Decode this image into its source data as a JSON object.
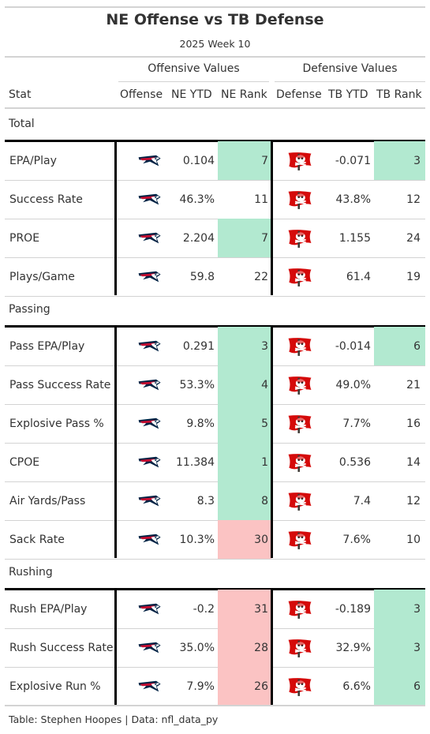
{
  "header": {
    "title": "NE Offense vs TB Defense",
    "subtitle": "2025 Week 10"
  },
  "spanners": {
    "offense": "Offensive Values",
    "defense": "Defensive Values"
  },
  "columns": {
    "stat": "Stat",
    "offense": "Offense",
    "ne_ytd": "NE YTD",
    "ne_rank": "NE Rank",
    "defense": "Defense",
    "tb_ytd": "TB YTD",
    "tb_rank": "TB Rank"
  },
  "logos": {
    "offense": "patriots-logo-icon",
    "defense": "buccaneers-flag-logo-icon"
  },
  "colors": {
    "good_rank": "#b2e9d0",
    "bad_rank": "#fbc3c3"
  },
  "groups": [
    {
      "label": "Total",
      "rows": [
        {
          "stat": "EPA/Play",
          "ne_ytd": "0.104",
          "ne_rank": "7",
          "ne_rank_status": "good",
          "tb_ytd": "-0.071",
          "tb_rank": "3",
          "tb_rank_status": "good"
        },
        {
          "stat": "Success Rate",
          "ne_ytd": "46.3%",
          "ne_rank": "11",
          "ne_rank_status": "none",
          "tb_ytd": "43.8%",
          "tb_rank": "12",
          "tb_rank_status": "none"
        },
        {
          "stat": "PROE",
          "ne_ytd": "2.204",
          "ne_rank": "7",
          "ne_rank_status": "good",
          "tb_ytd": "1.155",
          "tb_rank": "24",
          "tb_rank_status": "none"
        },
        {
          "stat": "Plays/Game",
          "ne_ytd": "59.8",
          "ne_rank": "22",
          "ne_rank_status": "none",
          "tb_ytd": "61.4",
          "tb_rank": "19",
          "tb_rank_status": "none"
        }
      ]
    },
    {
      "label": "Passing",
      "rows": [
        {
          "stat": "Pass EPA/Play",
          "ne_ytd": "0.291",
          "ne_rank": "3",
          "ne_rank_status": "good",
          "tb_ytd": "-0.014",
          "tb_rank": "6",
          "tb_rank_status": "good"
        },
        {
          "stat": "Pass Success Rate",
          "ne_ytd": "53.3%",
          "ne_rank": "4",
          "ne_rank_status": "good",
          "tb_ytd": "49.0%",
          "tb_rank": "21",
          "tb_rank_status": "none"
        },
        {
          "stat": "Explosive Pass %",
          "ne_ytd": "9.8%",
          "ne_rank": "5",
          "ne_rank_status": "good",
          "tb_ytd": "7.7%",
          "tb_rank": "16",
          "tb_rank_status": "none"
        },
        {
          "stat": "CPOE",
          "ne_ytd": "11.384",
          "ne_rank": "1",
          "ne_rank_status": "good",
          "tb_ytd": "0.536",
          "tb_rank": "14",
          "tb_rank_status": "none"
        },
        {
          "stat": "Air Yards/Pass",
          "ne_ytd": "8.3",
          "ne_rank": "8",
          "ne_rank_status": "good",
          "tb_ytd": "7.4",
          "tb_rank": "12",
          "tb_rank_status": "none"
        },
        {
          "stat": "Sack Rate",
          "ne_ytd": "10.3%",
          "ne_rank": "30",
          "ne_rank_status": "bad",
          "tb_ytd": "7.6%",
          "tb_rank": "10",
          "tb_rank_status": "none"
        }
      ]
    },
    {
      "label": "Rushing",
      "rows": [
        {
          "stat": "Rush EPA/Play",
          "ne_ytd": "-0.2",
          "ne_rank": "31",
          "ne_rank_status": "bad",
          "tb_ytd": "-0.189",
          "tb_rank": "3",
          "tb_rank_status": "good"
        },
        {
          "stat": "Rush Success Rate",
          "ne_ytd": "35.0%",
          "ne_rank": "28",
          "ne_rank_status": "bad",
          "tb_ytd": "32.9%",
          "tb_rank": "3",
          "tb_rank_status": "good"
        },
        {
          "stat": "Explosive Run %",
          "ne_ytd": "7.9%",
          "ne_rank": "26",
          "ne_rank_status": "bad",
          "tb_ytd": "6.6%",
          "tb_rank": "6",
          "tb_rank_status": "good"
        }
      ]
    }
  ],
  "footer": "Table: Stephen Hoopes | Data: nfl_data_py"
}
